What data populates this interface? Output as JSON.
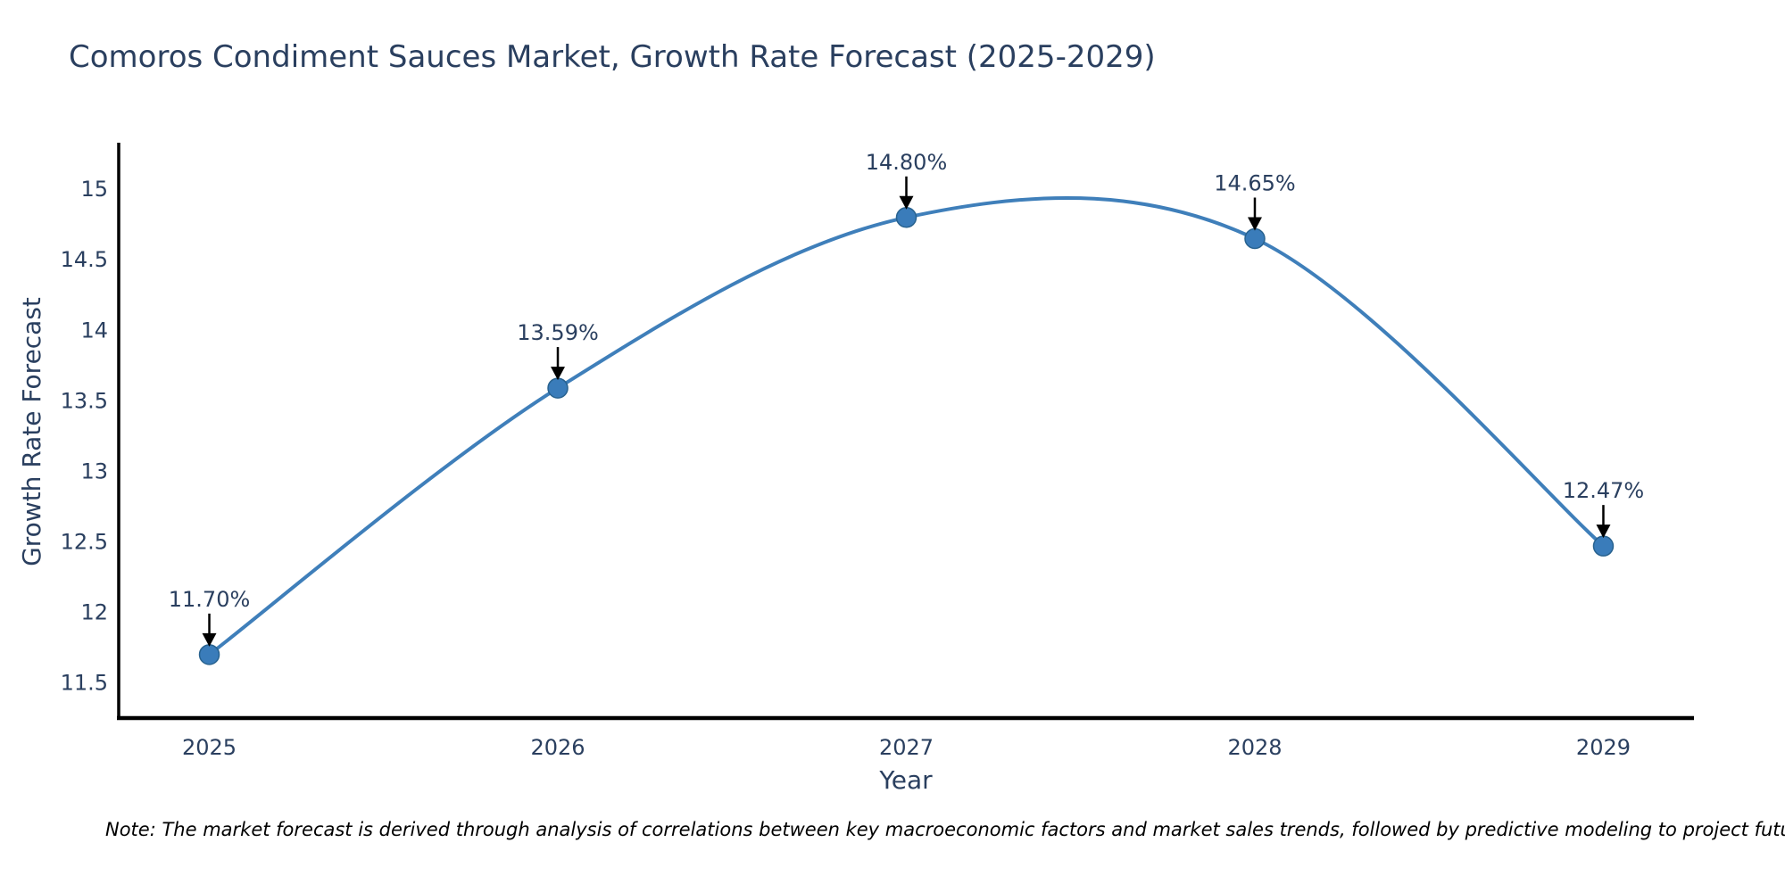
{
  "note": "Note: The market forecast is derived through analysis of correlations between key macroeconomic factors and market sales trends, followed by predictive modeling to project future sales",
  "chart_data": {
    "type": "line",
    "title": "Comoros Condiment Sauces Market, Growth Rate Forecast (2025-2029)",
    "xlabel": "Year",
    "ylabel": "Growth Rate Forecast",
    "x": [
      2025,
      2026,
      2027,
      2028,
      2029
    ],
    "y": [
      11.7,
      13.59,
      14.8,
      14.65,
      12.47
    ],
    "point_labels": [
      "11.70%",
      "13.59%",
      "14.80%",
      "14.65%",
      "12.47%"
    ],
    "x_tick_labels": [
      "2025",
      "2026",
      "2027",
      "2028",
      "2029"
    ],
    "y_tick_labels": [
      "11.5",
      "12",
      "12.5",
      "13",
      "13.5",
      "14",
      "14.5",
      "15"
    ],
    "xlim": [
      2024.74,
      2029.26
    ],
    "ylim": [
      11.25,
      15.33
    ],
    "grid": false,
    "line_shape": "spline",
    "legend": "none",
    "colors": {
      "line": "#3f7fba",
      "marker_fill": "#3a7cba",
      "marker_edge": "#28628f",
      "arrow": "#000000",
      "axis_line": "#000000",
      "tick_text": "#2a3f5f",
      "annotation_text": "#2a3f5f",
      "title_text": "#2a3f5f",
      "background": "#ffffff"
    }
  }
}
